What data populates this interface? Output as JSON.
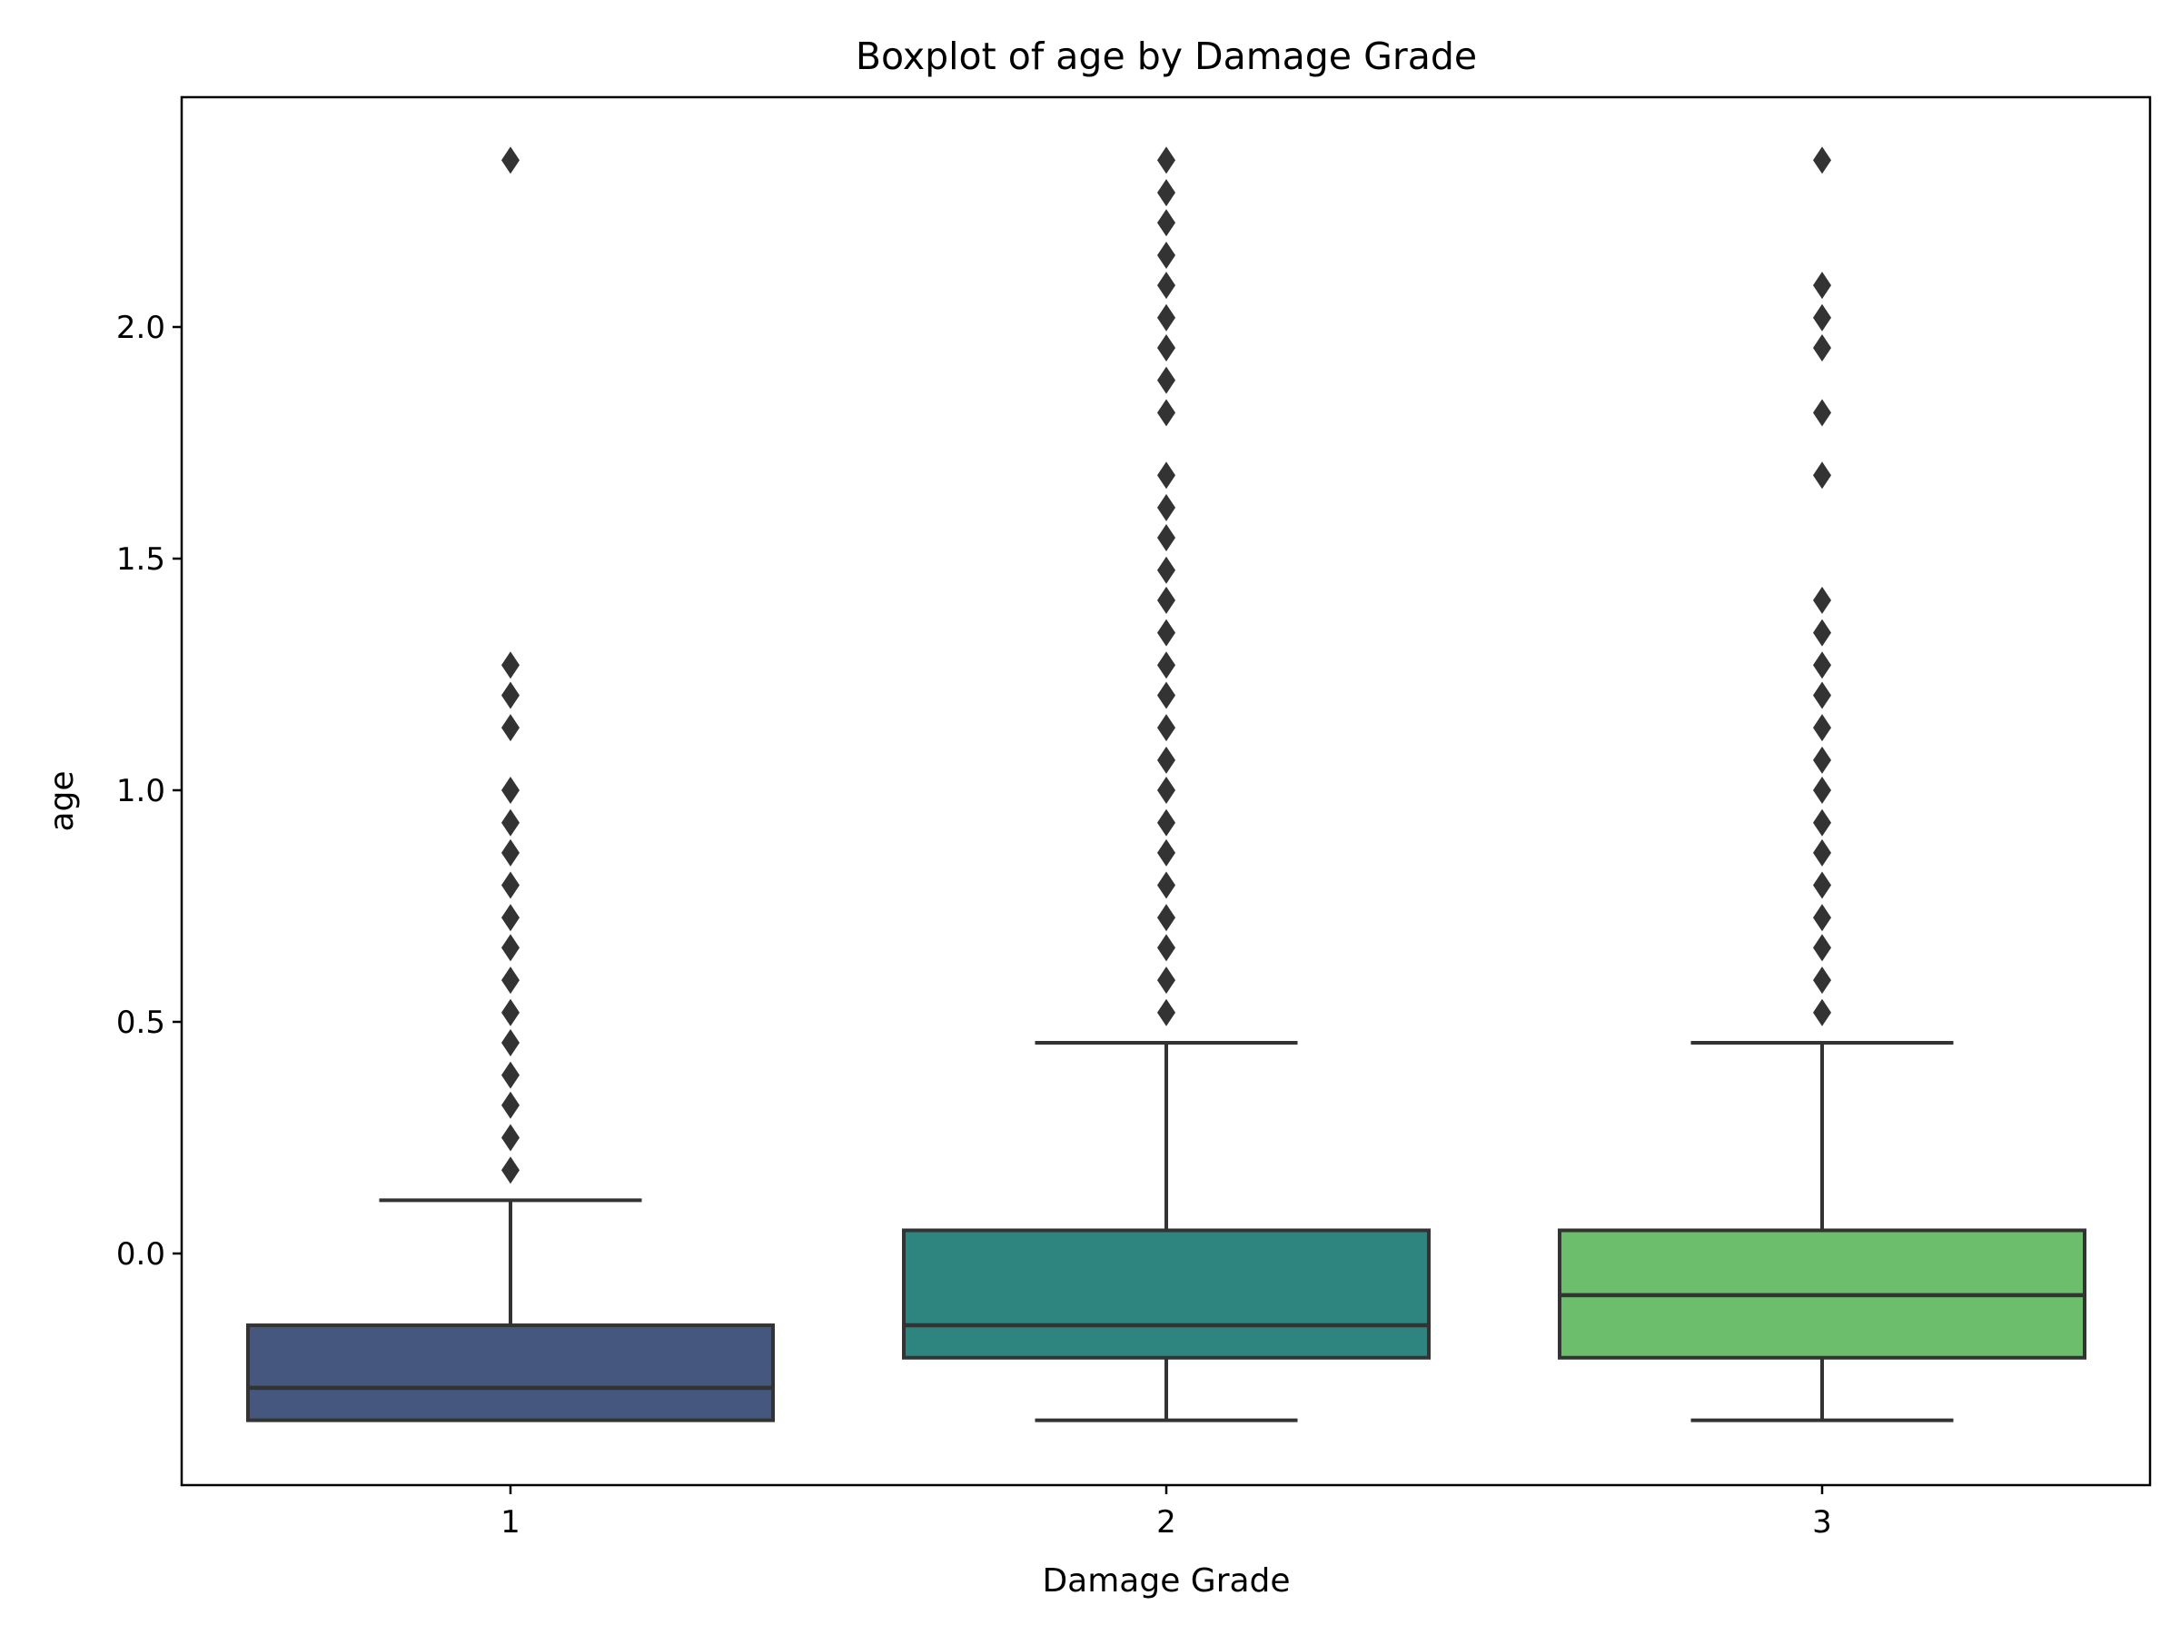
{
  "chart_data": {
    "type": "boxplot",
    "title": "Boxplot of age by Damage Grade",
    "xlabel": "Damage Grade",
    "ylabel": "age",
    "ylim": [
      -0.5,
      2.5
    ],
    "yticks": [
      0.0,
      0.5,
      1.0,
      1.5,
      2.0
    ],
    "ytick_labels": [
      "0.0",
      "0.5",
      "1.0",
      "1.5",
      "2.0"
    ],
    "grid": false,
    "categories": [
      "1",
      "2",
      "3"
    ],
    "boxes": [
      {
        "category": "1",
        "color": "#45577e",
        "whisker_low": -0.36,
        "q1": -0.36,
        "median": -0.29,
        "q3": -0.155,
        "whisker_high": 0.115,
        "outliers": [
          0.18,
          0.25,
          0.32,
          0.385,
          0.455,
          0.52,
          0.59,
          0.66,
          0.725,
          0.795,
          0.865,
          0.93,
          1.0,
          1.135,
          1.205,
          1.27,
          2.36
        ]
      },
      {
        "category": "2",
        "color": "#2e8580",
        "whisker_low": -0.36,
        "q1": -0.225,
        "median": -0.155,
        "q3": 0.05,
        "whisker_high": 0.455,
        "outliers": [
          0.52,
          0.59,
          0.66,
          0.725,
          0.795,
          0.865,
          0.93,
          1.0,
          1.065,
          1.135,
          1.205,
          1.27,
          1.34,
          1.41,
          1.475,
          1.545,
          1.61,
          1.68,
          1.815,
          1.885,
          1.955,
          2.02,
          2.09,
          2.155,
          2.225,
          2.29,
          2.36
        ]
      },
      {
        "category": "3",
        "color": "#6cbd6c",
        "whisker_low": -0.36,
        "q1": -0.225,
        "median": -0.09,
        "q3": 0.05,
        "whisker_high": 0.455,
        "outliers": [
          0.52,
          0.59,
          0.66,
          0.725,
          0.795,
          0.865,
          0.93,
          1.0,
          1.065,
          1.135,
          1.205,
          1.27,
          1.34,
          1.41,
          1.68,
          1.815,
          1.955,
          2.02,
          2.09,
          2.36
        ]
      }
    ],
    "line_color": "#333333"
  }
}
